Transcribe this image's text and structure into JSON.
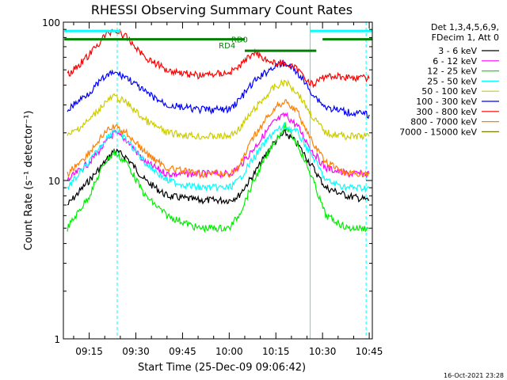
{
  "chart_data": {
    "type": "line",
    "title": "RHESSI Observing Summary Count Rates",
    "xlabel": "Start Time (25-Dec-09 09:06:42)",
    "ylabel": "Count Rate (s⁻¹ detector⁻¹)",
    "yscale": "log",
    "ylim": [
      1,
      100
    ],
    "xlim": [
      "09:06:42",
      "10:46:00"
    ],
    "x_ticks": [
      "09:15",
      "09:30",
      "09:45",
      "10:00",
      "10:15",
      "10:30",
      "10:45"
    ],
    "y_ticks": [
      "1",
      "10",
      "100"
    ],
    "legend_header": [
      "Det 1,3,4,5,6,9,",
      "FDecim 1, Att 0"
    ],
    "legend_position": "right",
    "timestamp": "16-Oct-2021 23:28",
    "series": [
      {
        "name": "3 - 6 keV",
        "color": "#000000",
        "times": [
          "09:08",
          "09:15",
          "09:20",
          "09:23",
          "09:27",
          "09:33",
          "09:40",
          "09:50",
          "10:00",
          "10:03",
          "10:08",
          "10:14",
          "10:18",
          "10:22",
          "10:27",
          "10:31",
          "10:38",
          "10:45"
        ],
        "values": [
          7,
          10,
          13,
          15.5,
          14,
          10,
          8,
          7.5,
          7.5,
          8,
          11,
          17,
          20,
          17,
          12,
          9,
          8,
          7.5
        ]
      },
      {
        "name": "6 - 12 keV",
        "color": "#ff00ff",
        "times": [
          "09:08",
          "09:15",
          "09:20",
          "09:23",
          "09:27",
          "09:33",
          "09:40",
          "09:50",
          "10:00",
          "10:03",
          "10:08",
          "10:14",
          "10:18",
          "10:22",
          "10:27",
          "10:31",
          "10:38",
          "10:45"
        ],
        "values": [
          10,
          13,
          17,
          20,
          18,
          13,
          11,
          11,
          11,
          12,
          16,
          23,
          26,
          22,
          15,
          12,
          11,
          11
        ]
      },
      {
        "name": "12 - 25 keV",
        "color": "#00ee00",
        "times": [
          "09:08",
          "09:15",
          "09:20",
          "09:23",
          "09:27",
          "09:33",
          "09:40",
          "09:50",
          "10:00",
          "10:03",
          "10:08",
          "10:14",
          "10:18",
          "10:22",
          "10:27",
          "10:31",
          "10:38",
          "10:45"
        ],
        "values": [
          5,
          8,
          13,
          15,
          13,
          8,
          6,
          5,
          5,
          6,
          10,
          17,
          22,
          17,
          10,
          6,
          5,
          5
        ]
      },
      {
        "name": "25 - 50 keV",
        "color": "#00ffff",
        "times": [
          "09:08",
          "09:15",
          "09:20",
          "09:23",
          "09:27",
          "09:33",
          "09:40",
          "09:50",
          "10:00",
          "10:03",
          "10:08",
          "10:14",
          "10:18",
          "10:22",
          "10:27",
          "10:31",
          "10:38",
          "10:45"
        ],
        "values": [
          9,
          13,
          18,
          21,
          18,
          13,
          10,
          9,
          9,
          10,
          14,
          20,
          22,
          20,
          14,
          10,
          9,
          9
        ]
      },
      {
        "name": "50 - 100 keV",
        "color": "#cccc00",
        "times": [
          "09:08",
          "09:15",
          "09:20",
          "09:23",
          "09:27",
          "09:33",
          "09:40",
          "09:50",
          "10:00",
          "10:03",
          "10:08",
          "10:14",
          "10:18",
          "10:22",
          "10:27",
          "10:31",
          "10:38",
          "10:45"
        ],
        "values": [
          19,
          24,
          31,
          34,
          31,
          24,
          20,
          19,
          19,
          21,
          28,
          38,
          42,
          36,
          25,
          20,
          19,
          19
        ]
      },
      {
        "name": "100 - 300 keV",
        "color": "#0000ff",
        "times": [
          "09:08",
          "09:15",
          "09:20",
          "09:23",
          "09:27",
          "09:33",
          "09:40",
          "09:50",
          "10:00",
          "10:03",
          "10:08",
          "10:14",
          "10:18",
          "10:22",
          "10:27",
          "10:31",
          "10:38",
          "10:45"
        ],
        "values": [
          28,
          36,
          45,
          48,
          45,
          36,
          30,
          28,
          28,
          32,
          42,
          52,
          55,
          48,
          35,
          29,
          27,
          26
        ]
      },
      {
        "name": "300 - 800 keV",
        "color": "#ff0000",
        "times": [
          "09:08",
          "09:15",
          "09:20",
          "09:23",
          "09:27",
          "09:33",
          "09:40",
          "09:50",
          "10:00",
          "10:03",
          "10:08",
          "10:14",
          "10:18",
          "10:22",
          "10:27",
          "10:31",
          "10:38",
          "10:45"
        ],
        "values": [
          46,
          62,
          82,
          90,
          80,
          60,
          50,
          46,
          48,
          52,
          65,
          55,
          55,
          50,
          40,
          46,
          45,
          44
        ]
      },
      {
        "name": "800 - 7000 keV",
        "color": "#ff7f00",
        "times": [
          "09:08",
          "09:15",
          "09:20",
          "09:23",
          "09:27",
          "09:33",
          "09:40",
          "09:50",
          "10:00",
          "10:03",
          "10:08",
          "10:14",
          "10:18",
          "10:22",
          "10:27",
          "10:31",
          "10:38",
          "10:45"
        ],
        "values": [
          11,
          15,
          20,
          22,
          20,
          15,
          12,
          11,
          11,
          12,
          19,
          28,
          32,
          27,
          17,
          13,
          11,
          11
        ]
      },
      {
        "name": "7000 - 15000 keV",
        "color": "#808000",
        "times": [],
        "values": []
      }
    ],
    "annotations": [
      {
        "label": "RD4",
        "time": "10:02",
        "level": 66
      },
      {
        "label": "RD0",
        "time": "10:06",
        "level": 72
      }
    ],
    "flag_bars": [
      {
        "color": "#008000",
        "start": "09:07",
        "end": "10:05",
        "level": 78
      },
      {
        "color": "#008000",
        "start": "10:05",
        "end": "10:28",
        "level": 66
      },
      {
        "color": "#008000",
        "start": "10:30",
        "end": "10:46",
        "level": 78
      },
      {
        "color": "#00ffff",
        "start": "09:07",
        "end": "09:25",
        "level": 88
      },
      {
        "color": "#00ffff",
        "start": "10:26",
        "end": "10:46",
        "level": 88
      }
    ],
    "vlines": [
      {
        "time": "09:24",
        "color": "#00ffff",
        "style": "dashed"
      },
      {
        "time": "10:26",
        "color": "#00ffff",
        "style": "solid"
      },
      {
        "time": "10:44",
        "color": "#00ffff",
        "style": "dashed"
      }
    ]
  }
}
